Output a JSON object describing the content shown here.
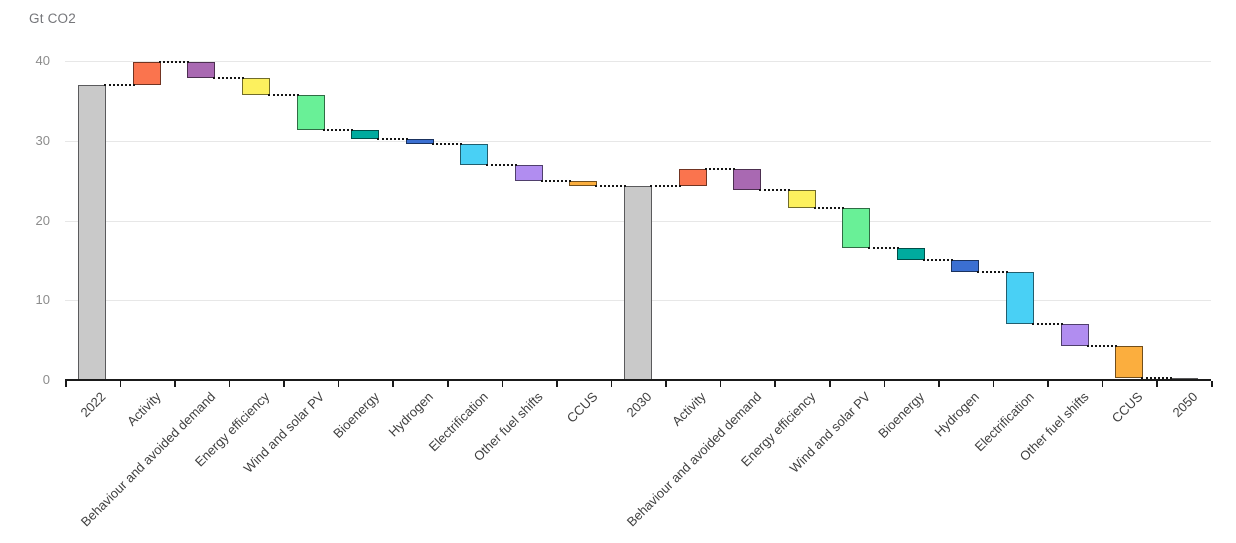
{
  "header": {
    "unit_label": "Gt CO2"
  },
  "chart_data": {
    "type": "bar",
    "subtype": "waterfall",
    "title": "",
    "xlabel": "",
    "ylabel": "Gt CO2",
    "ylim": [
      0,
      40
    ],
    "yticks": [
      0,
      10,
      20,
      30,
      40
    ],
    "grid": "horizontal",
    "legend": "none",
    "connector_style": "dotted",
    "categories": [
      "2022",
      "Activity",
      "Behaviour and avoided demand",
      "Energy efficiency",
      "Wind and solar PV",
      "Bioenergy",
      "Hydrogen",
      "Electrification",
      "Other fuel shifts",
      "CCUS",
      "2030",
      "Activity",
      "Behaviour and avoided demand",
      "Energy efficiency",
      "Wind and solar PV",
      "Bioenergy",
      "Hydrogen",
      "Electrification",
      "Other fuel shifts",
      "CCUS",
      "2050"
    ],
    "bars": [
      {
        "label": "2022",
        "kind": "total",
        "start": 0,
        "end": 37.0,
        "delta": 37.0,
        "measure": "total"
      },
      {
        "label": "Activity",
        "kind": "increase",
        "start": 37.0,
        "end": 39.9,
        "delta": 2.9,
        "measure": "activity"
      },
      {
        "label": "Behaviour and avoided demand",
        "kind": "decrease",
        "start": 39.9,
        "end": 37.9,
        "delta": -2.0,
        "measure": "behaviour"
      },
      {
        "label": "Energy efficiency",
        "kind": "decrease",
        "start": 37.9,
        "end": 35.7,
        "delta": -2.2,
        "measure": "efficiency"
      },
      {
        "label": "Wind and solar PV",
        "kind": "decrease",
        "start": 35.7,
        "end": 31.4,
        "delta": -4.3,
        "measure": "wind_solar"
      },
      {
        "label": "Bioenergy",
        "kind": "decrease",
        "start": 31.4,
        "end": 30.2,
        "delta": -1.2,
        "measure": "bioenergy"
      },
      {
        "label": "Hydrogen",
        "kind": "decrease",
        "start": 30.2,
        "end": 29.6,
        "delta": -0.6,
        "measure": "hydrogen"
      },
      {
        "label": "Electrification",
        "kind": "decrease",
        "start": 29.6,
        "end": 27.0,
        "delta": -2.6,
        "measure": "electrification"
      },
      {
        "label": "Other fuel shifts",
        "kind": "decrease",
        "start": 27.0,
        "end": 24.9,
        "delta": -2.1,
        "measure": "other_fuel"
      },
      {
        "label": "CCUS",
        "kind": "decrease",
        "start": 24.9,
        "end": 24.3,
        "delta": -0.6,
        "measure": "ccus"
      },
      {
        "label": "2030",
        "kind": "total",
        "start": 0,
        "end": 24.3,
        "delta": 24.3,
        "measure": "total"
      },
      {
        "label": "Activity",
        "kind": "increase",
        "start": 24.3,
        "end": 26.4,
        "delta": 2.1,
        "measure": "activity"
      },
      {
        "label": "Behaviour and avoided demand",
        "kind": "decrease",
        "start": 26.4,
        "end": 23.8,
        "delta": -2.6,
        "measure": "behaviour"
      },
      {
        "label": "Energy efficiency",
        "kind": "decrease",
        "start": 23.8,
        "end": 21.6,
        "delta": -2.2,
        "measure": "efficiency"
      },
      {
        "label": "Wind and solar PV",
        "kind": "decrease",
        "start": 21.6,
        "end": 16.6,
        "delta": -5.0,
        "measure": "wind_solar"
      },
      {
        "label": "Bioenergy",
        "kind": "decrease",
        "start": 16.6,
        "end": 15.0,
        "delta": -1.6,
        "measure": "bioenergy"
      },
      {
        "label": "Hydrogen",
        "kind": "decrease",
        "start": 15.0,
        "end": 13.5,
        "delta": -1.5,
        "measure": "hydrogen"
      },
      {
        "label": "Electrification",
        "kind": "decrease",
        "start": 13.5,
        "end": 7.0,
        "delta": -6.5,
        "measure": "electrification"
      },
      {
        "label": "Other fuel shifts",
        "kind": "decrease",
        "start": 7.0,
        "end": 4.3,
        "delta": -2.7,
        "measure": "other_fuel"
      },
      {
        "label": "CCUS",
        "kind": "decrease",
        "start": 4.3,
        "end": 0.3,
        "delta": -4.0,
        "measure": "ccus"
      },
      {
        "label": "2050",
        "kind": "total",
        "start": 0,
        "end": 0.3,
        "delta": 0.3,
        "measure": "total"
      }
    ],
    "colors": {
      "total": "#c9c9c9",
      "activity": "#fa744e",
      "behaviour": "#a969b2",
      "efficiency": "#fcf05e",
      "wind_solar": "#69f097",
      "bioenergy": "#00ab9e",
      "hydrogen": "#3b6fd1",
      "electrification": "#49d0f5",
      "other_fuel": "#b18df0",
      "ccus": "#fbae3e"
    },
    "border_colors": {
      "total": "#5a5a5c",
      "activity": "#713422",
      "behaviour": "#4c2f50",
      "efficiency": "#716c2a",
      "wind_solar": "#2f6c44",
      "bioenergy": "#004d47",
      "hydrogen": "#1a325e",
      "electrification": "#215e6e",
      "other_fuel": "#4f3f6c",
      "ccus": "#714e1c"
    },
    "gridline_color": "#e7e7e7",
    "axis_color": "#1a1a1a",
    "tick_label_color": "#8c8c8c",
    "category_label_color": "#3f3f3f"
  }
}
